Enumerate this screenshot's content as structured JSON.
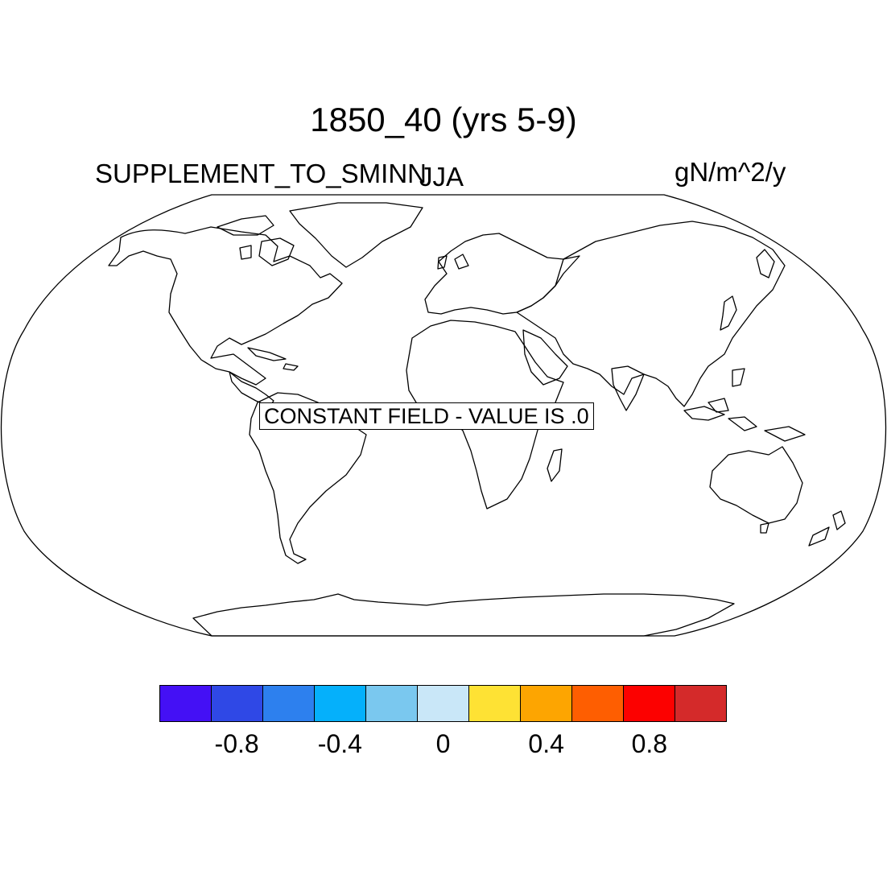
{
  "title": "1850_40 (yrs 5-9)",
  "left_label": "SUPPLEMENT_TO_SMINN",
  "center_label": "JJA",
  "right_label": "gN/m^2/y",
  "constant_message": "CONSTANT FIELD - VALUE IS .0",
  "projection": "robinson",
  "colorbar": {
    "colors": [
      "#4410f5",
      "#2f48e6",
      "#2d80ee",
      "#05b0fb",
      "#7ac8ef",
      "#c9e7f8",
      "#fee234",
      "#fda501",
      "#fe5e01",
      "#fc0100",
      "#d42a2a"
    ],
    "tick_labels": [
      "-0.8",
      "-0.4",
      "0",
      "0.4",
      "0.8"
    ]
  }
}
